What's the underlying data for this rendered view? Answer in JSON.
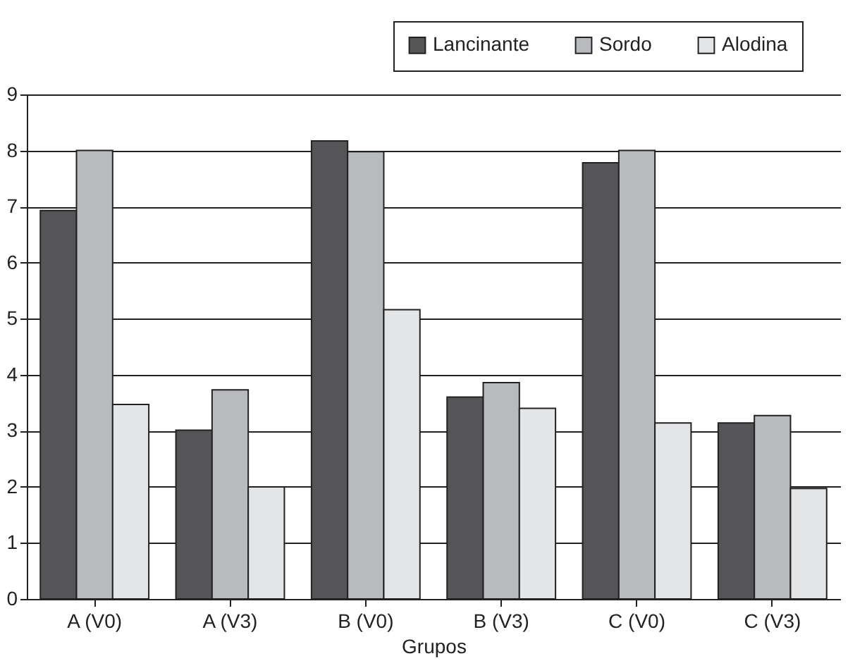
{
  "chart_data": {
    "type": "bar",
    "xlabel": "Grupos",
    "categories": [
      "A (V0)",
      "A (V3)",
      "B (V0)",
      "B (V3)",
      "C (V0)",
      "C (V3)"
    ],
    "series": [
      {
        "name": "Lancinante",
        "color": "#555558",
        "values": [
          6.93,
          3.01,
          8.17,
          3.6,
          7.78,
          3.14
        ]
      },
      {
        "name": "Sordo",
        "color": "#b9babd",
        "values": [
          8,
          3.73,
          7.98,
          3.86,
          8,
          3.27
        ]
      },
      {
        "name": "Alodina",
        "color": "#e4e5e7",
        "values": [
          3.47,
          2,
          5.16,
          3.4,
          3.14,
          1.97
        ]
      }
    ],
    "ylim": [
      0,
      9
    ],
    "yticks": [
      0,
      1,
      2,
      3,
      4,
      5,
      6,
      7,
      8,
      9
    ],
    "grid": "y",
    "legend": "top right"
  }
}
